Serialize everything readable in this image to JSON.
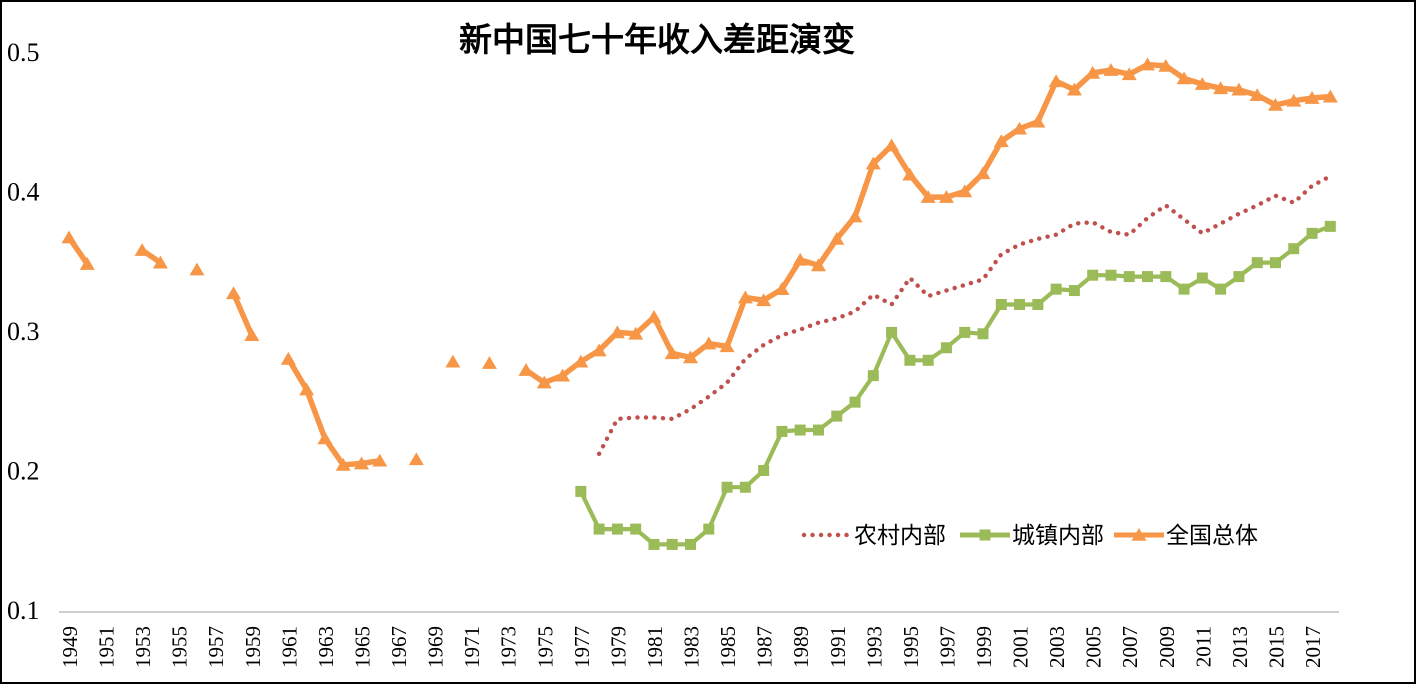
{
  "page": {
    "background": "#ffffff",
    "border_color": "#000000"
  },
  "chart_data": {
    "type": "line",
    "title": "新中国七十年收入差距演变",
    "text_color": "#000000",
    "axis_line_color": "#bfbfbf",
    "legend_position": "inside-bottom-right",
    "gridlines": false,
    "y_axis": {
      "min": 0.1,
      "max": 0.5,
      "ticks": [
        "0.1",
        "0.2",
        "0.3",
        "0.4",
        "0.5"
      ]
    },
    "x_axis": {
      "min": 1949,
      "max": 2018,
      "tick_step": 2,
      "label_rotation": "vertical",
      "tick_labels": [
        "1949",
        "1951",
        "1953",
        "1955",
        "1957",
        "1959",
        "1961",
        "1963",
        "1965",
        "1967",
        "1969",
        "1971",
        "1973",
        "1975",
        "1977",
        "1979",
        "1981",
        "1983",
        "1985",
        "1987",
        "1989",
        "1991",
        "1993",
        "1995",
        "1997",
        "1999",
        "2001",
        "2003",
        "2005",
        "2007",
        "2009",
        "2011",
        "2013",
        "2015",
        "2017"
      ]
    },
    "series": [
      {
        "name": "农村内部",
        "key": "rural",
        "color": "#C0504D",
        "line_style": "dotted",
        "marker": "none",
        "points": [
          [
            1978,
            0.212
          ],
          [
            1979,
            0.237
          ],
          [
            1980,
            0.238
          ],
          [
            1981,
            0.238
          ],
          [
            1982,
            0.237
          ],
          [
            1983,
            0.244
          ],
          [
            1984,
            0.253
          ],
          [
            1985,
            0.263
          ],
          [
            1986,
            0.28
          ],
          [
            1987,
            0.29
          ],
          [
            1988,
            0.297
          ],
          [
            1989,
            0.301
          ],
          [
            1990,
            0.306
          ],
          [
            1991,
            0.309
          ],
          [
            1992,
            0.314
          ],
          [
            1993,
            0.326
          ],
          [
            1994,
            0.319
          ],
          [
            1995,
            0.338
          ],
          [
            1996,
            0.325
          ],
          [
            1997,
            0.329
          ],
          [
            1998,
            0.333
          ],
          [
            1999,
            0.337
          ],
          [
            2000,
            0.355
          ],
          [
            2001,
            0.362
          ],
          [
            2002,
            0.366
          ],
          [
            2003,
            0.369
          ],
          [
            2004,
            0.377
          ],
          [
            2005,
            0.378
          ],
          [
            2006,
            0.371
          ],
          [
            2007,
            0.369
          ],
          [
            2008,
            0.381
          ],
          [
            2009,
            0.39
          ],
          [
            2010,
            0.38
          ],
          [
            2011,
            0.37
          ],
          [
            2012,
            0.377
          ],
          [
            2013,
            0.384
          ],
          [
            2014,
            0.39
          ],
          [
            2015,
            0.397
          ],
          [
            2016,
            0.392
          ],
          [
            2017,
            0.404
          ],
          [
            2018,
            0.411
          ]
        ]
      },
      {
        "name": "城镇内部",
        "key": "urban",
        "color": "#9BBB59",
        "line_style": "solid",
        "marker": "square",
        "points": [
          [
            1977,
            0.185
          ],
          [
            1978,
            0.158
          ],
          [
            1979,
            0.158
          ],
          [
            1980,
            0.158
          ],
          [
            1981,
            0.147
          ],
          [
            1982,
            0.147
          ],
          [
            1983,
            0.147
          ],
          [
            1984,
            0.158
          ],
          [
            1985,
            0.188
          ],
          [
            1986,
            0.188
          ],
          [
            1987,
            0.2
          ],
          [
            1988,
            0.228
          ],
          [
            1989,
            0.229
          ],
          [
            1990,
            0.229
          ],
          [
            1991,
            0.239
          ],
          [
            1992,
            0.249
          ],
          [
            1993,
            0.268
          ],
          [
            1994,
            0.299
          ],
          [
            1995,
            0.279
          ],
          [
            1996,
            0.279
          ],
          [
            1997,
            0.288
          ],
          [
            1998,
            0.299
          ],
          [
            1999,
            0.298
          ],
          [
            2000,
            0.319
          ],
          [
            2001,
            0.319
          ],
          [
            2002,
            0.319
          ],
          [
            2003,
            0.33
          ],
          [
            2004,
            0.329
          ],
          [
            2005,
            0.34
          ],
          [
            2006,
            0.34
          ],
          [
            2007,
            0.339
          ],
          [
            2008,
            0.339
          ],
          [
            2009,
            0.339
          ],
          [
            2010,
            0.33
          ],
          [
            2011,
            0.338
          ],
          [
            2012,
            0.33
          ],
          [
            2013,
            0.339
          ],
          [
            2014,
            0.349
          ],
          [
            2015,
            0.349
          ],
          [
            2016,
            0.359
          ],
          [
            2017,
            0.37
          ],
          [
            2018,
            0.375
          ]
        ]
      },
      {
        "name": "全国总体",
        "key": "national",
        "color": "#F79646",
        "line_style": "solid",
        "marker": "triangle",
        "points": [
          [
            1949,
            0.367
          ],
          [
            1950,
            0.348
          ],
          [
            1953,
            0.358
          ],
          [
            1954,
            0.349
          ],
          [
            1956,
            0.344
          ],
          [
            1958,
            0.327
          ],
          [
            1959,
            0.297
          ],
          [
            1961,
            0.28
          ],
          [
            1962,
            0.258
          ],
          [
            1963,
            0.223
          ],
          [
            1964,
            0.204
          ],
          [
            1965,
            0.205
          ],
          [
            1966,
            0.207
          ],
          [
            1968,
            0.208
          ],
          [
            1970,
            0.278
          ],
          [
            1972,
            0.277
          ],
          [
            1974,
            0.272
          ],
          [
            1975,
            0.263
          ],
          [
            1976,
            0.268
          ],
          [
            1977,
            0.278
          ],
          [
            1978,
            0.286
          ],
          [
            1979,
            0.299
          ],
          [
            1980,
            0.298
          ],
          [
            1981,
            0.31
          ],
          [
            1982,
            0.284
          ],
          [
            1983,
            0.281
          ],
          [
            1984,
            0.291
          ],
          [
            1985,
            0.289
          ],
          [
            1986,
            0.324
          ],
          [
            1987,
            0.322
          ],
          [
            1988,
            0.33
          ],
          [
            1989,
            0.351
          ],
          [
            1990,
            0.347
          ],
          [
            1991,
            0.366
          ],
          [
            1992,
            0.382
          ],
          [
            1993,
            0.42
          ],
          [
            1994,
            0.433
          ],
          [
            1995,
            0.412
          ],
          [
            1996,
            0.396
          ],
          [
            1997,
            0.396
          ],
          [
            1998,
            0.4
          ],
          [
            1999,
            0.413
          ],
          [
            2000,
            0.436
          ],
          [
            2001,
            0.445
          ],
          [
            2002,
            0.45
          ],
          [
            2003,
            0.479
          ],
          [
            2004,
            0.473
          ],
          [
            2005,
            0.485
          ],
          [
            2006,
            0.487
          ],
          [
            2007,
            0.484
          ],
          [
            2008,
            0.491
          ],
          [
            2009,
            0.49
          ],
          [
            2010,
            0.481
          ],
          [
            2011,
            0.477
          ],
          [
            2012,
            0.474
          ],
          [
            2013,
            0.473
          ],
          [
            2014,
            0.469
          ],
          [
            2015,
            0.462
          ],
          [
            2016,
            0.465
          ],
          [
            2017,
            0.467
          ],
          [
            2018,
            0.468
          ]
        ]
      }
    ]
  }
}
